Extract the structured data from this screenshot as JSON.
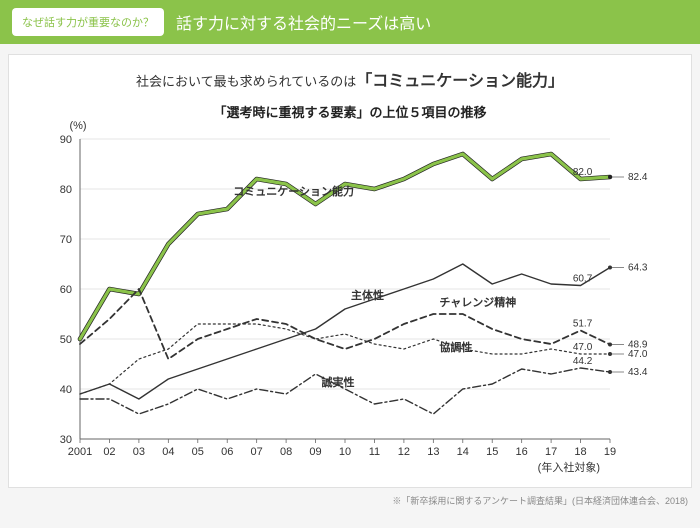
{
  "header": {
    "tag": "なぜ話す力が重要なのか？",
    "title": "話す力に対する社会的ニーズは高い"
  },
  "subtitle": {
    "prefix": "社会において最も求められているのは",
    "emphasis": "「コミュニケーション能力」"
  },
  "chart": {
    "title": "「選考時に重視する要素」の上位５項目の推移",
    "y_axis_label": "(%)",
    "x_axis_label": "(年入社対象)",
    "xlabels": [
      "2001",
      "02",
      "03",
      "04",
      "05",
      "06",
      "07",
      "08",
      "09",
      "10",
      "11",
      "12",
      "13",
      "14",
      "15",
      "16",
      "17",
      "18",
      "19"
    ],
    "ylim": [
      30,
      90
    ],
    "ytick_step": 10,
    "grid_color": "#cccccc",
    "background": "#ffffff",
    "series": [
      {
        "name": "コミュニケーション能力",
        "color": "#8bc34a",
        "under_color": "#222222",
        "width": 3.2,
        "dash": "",
        "marker": "none",
        "label_xy_index": 5,
        "label_dy": -14,
        "end_label_2018": "82.0",
        "end_label_2019": "82.4",
        "values": [
          50,
          60,
          59,
          69,
          75,
          76,
          82,
          81,
          77,
          81,
          80,
          82,
          85,
          87,
          82,
          86,
          87,
          82,
          82.4
        ]
      },
      {
        "name": "主体性",
        "color": "#333333",
        "width": 1.4,
        "dash": "",
        "marker": "none",
        "label_xy_index": 9,
        "label_dy": -10,
        "end_label_2018": "60.7",
        "end_label_2019": "64.3",
        "values": [
          39,
          41,
          38,
          42,
          44,
          46,
          48,
          50,
          52,
          56,
          58,
          60,
          62,
          65,
          61,
          63,
          61,
          60.7,
          64.3
        ]
      },
      {
        "name": "チャレンジ精神",
        "color": "#333333",
        "width": 1.8,
        "dash": "6,4",
        "marker": "none",
        "label_xy_index": 12,
        "label_dy": -8,
        "end_label_2018": "51.7",
        "end_label_2019": "48.9",
        "values": [
          49,
          54,
          60,
          46,
          50,
          52,
          54,
          53,
          50,
          48,
          50,
          53,
          55,
          55,
          52,
          50,
          49,
          51.7,
          48.9
        ]
      },
      {
        "name": "協調性",
        "color": "#333333",
        "width": 1.2,
        "dash": "2,3",
        "marker": "none",
        "label_xy_index": 12,
        "label_dy": 12,
        "end_label_2018": "47.0",
        "end_label_2019": "47.0",
        "values": [
          39,
          41,
          46,
          48,
          53,
          53,
          53,
          52,
          50,
          51,
          49,
          48,
          50,
          48,
          47,
          47,
          48,
          47,
          47
        ]
      },
      {
        "name": "誠実性",
        "color": "#333333",
        "width": 1.4,
        "dash": "8,3,2,3",
        "marker": "none",
        "label_xy_index": 8,
        "label_dy": 12,
        "end_label_2018": "44.2",
        "end_label_2019": "43.4",
        "values": [
          38,
          38,
          35,
          37,
          40,
          38,
          40,
          39,
          43,
          40,
          37,
          38,
          35,
          40,
          41,
          44,
          43,
          44.2,
          43.4
        ]
      }
    ]
  },
  "footnote": "※「新卒採用に関するアンケート調査結果」(日本経済団体連合会、2018)"
}
